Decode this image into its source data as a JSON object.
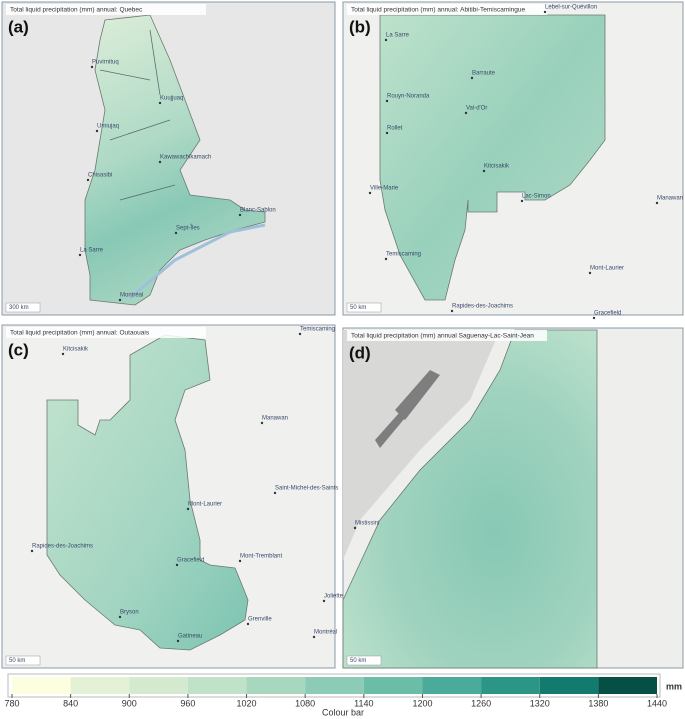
{
  "panels": [
    {
      "label": "(a)",
      "title": "Total liquid precipitation (mm) annual: Quebec",
      "scale": "300 km",
      "places": [
        "Puvirnituq",
        "Kuujjuaq",
        "Umiujaq",
        "Kawawachikamach",
        "Chisasibi",
        "Blanc-Sablon",
        "Sept-Îles",
        "La Sarre",
        "Montréal"
      ]
    },
    {
      "label": "(b)",
      "title": "Total liquid precipitation (mm) annual: Abitibi-Temiscamingue",
      "scale": "50 km",
      "places": [
        "Lebel-sur-Quévillon",
        "La Sarre",
        "Barraute",
        "Rouyn-Noranda",
        "Val-d'Or",
        "Rollet",
        "Kitcisakik",
        "Lac-Simon",
        "Ville-Marie",
        "Manawan",
        "Temiscaming",
        "Mont-Laurier",
        "Rapides-des-Joachims",
        "Gracefield"
      ]
    },
    {
      "label": "(c)",
      "title": "Total liquid precipitation (mm) annual: Outaouais",
      "scale": "50 km",
      "places": [
        "Temiscaming",
        "Kitcisakik",
        "Manawan",
        "Mont-Laurier",
        "Saint-Michel-des-Saints",
        "Rapides-des-Joachims",
        "Gracefield",
        "Mont-Tremblant",
        "Joliette",
        "Bryson",
        "Grenville",
        "Gatineau",
        "Montréal"
      ]
    },
    {
      "label": "(d)",
      "title": "Total liquid precipitation (mm) annual Saguenay-Lac-Saint-Jean",
      "scale": "50 km",
      "places": [
        "Mistissini"
      ]
    }
  ],
  "colorbar": {
    "ticks": [
      780,
      840,
      900,
      960,
      1020,
      1080,
      1140,
      1200,
      1260,
      1320,
      1380,
      1440
    ],
    "colors": [
      "#fdfde0",
      "#e4f1d6",
      "#d3eace",
      "#c0e2c8",
      "#a7d7bf",
      "#8ccbb5",
      "#6bbda8",
      "#4aab9a",
      "#2b9686",
      "#127b6d",
      "#064f44"
    ],
    "unit": "mm",
    "label": "Colour bar"
  }
}
